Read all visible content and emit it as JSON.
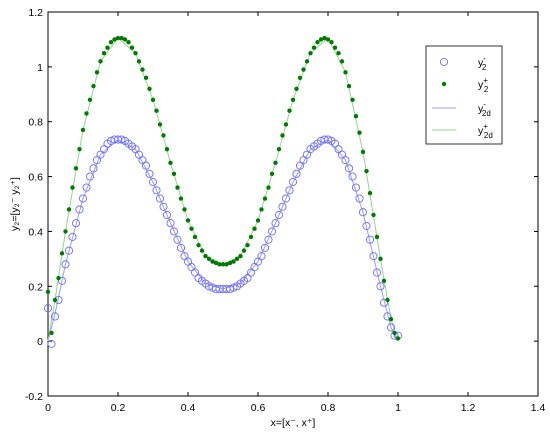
{
  "chart_data": {
    "type": "scatter",
    "xlabel": "x=[x⁻, x⁺]",
    "ylabel": "y₂=[y₂⁻ y₂⁺]",
    "xlim": [
      0,
      1.4
    ],
    "ylim": [
      -0.2,
      1.2
    ],
    "xticks": [
      "0",
      "0.2",
      "0.4",
      "0.6",
      "0.8",
      "1",
      "1.2",
      "1.4"
    ],
    "yticks": [
      "-0.2",
      "0",
      "0.2",
      "0.4",
      "0.6",
      "0.8",
      "1",
      "1.2"
    ],
    "legend_position": "top-right",
    "grid": false,
    "series": [
      {
        "name": "y₂⁻",
        "style": "open-circle",
        "color": "#6b6bff",
        "x": [
          0.0,
          0.01,
          0.02,
          0.03,
          0.04,
          0.05,
          0.06,
          0.07,
          0.08,
          0.09,
          0.1,
          0.11,
          0.12,
          0.13,
          0.14,
          0.15,
          0.16,
          0.17,
          0.18,
          0.19,
          0.2,
          0.21,
          0.22,
          0.23,
          0.24,
          0.25,
          0.26,
          0.27,
          0.28,
          0.29,
          0.3,
          0.31,
          0.32,
          0.33,
          0.34,
          0.35,
          0.36,
          0.37,
          0.38,
          0.39,
          0.4,
          0.41,
          0.42,
          0.43,
          0.44,
          0.45,
          0.46,
          0.47,
          0.48,
          0.49,
          0.5,
          0.51,
          0.52,
          0.53,
          0.54,
          0.55,
          0.56,
          0.57,
          0.58,
          0.59,
          0.6,
          0.61,
          0.62,
          0.63,
          0.64,
          0.65,
          0.66,
          0.67,
          0.68,
          0.69,
          0.7,
          0.71,
          0.72,
          0.73,
          0.74,
          0.75,
          0.76,
          0.77,
          0.78,
          0.79,
          0.8,
          0.81,
          0.82,
          0.83,
          0.84,
          0.85,
          0.86,
          0.87,
          0.88,
          0.89,
          0.9,
          0.91,
          0.92,
          0.93,
          0.94,
          0.95,
          0.96,
          0.97,
          0.98,
          0.99,
          1.0
        ],
        "y": [
          0.12,
          -0.01,
          0.09,
          0.15,
          0.22,
          0.28,
          0.33,
          0.38,
          0.43,
          0.48,
          0.52,
          0.56,
          0.6,
          0.63,
          0.66,
          0.68,
          0.7,
          0.72,
          0.73,
          0.735,
          0.735,
          0.735,
          0.73,
          0.72,
          0.71,
          0.7,
          0.68,
          0.66,
          0.64,
          0.61,
          0.58,
          0.55,
          0.52,
          0.49,
          0.46,
          0.43,
          0.4,
          0.37,
          0.34,
          0.31,
          0.29,
          0.27,
          0.25,
          0.23,
          0.22,
          0.21,
          0.2,
          0.195,
          0.19,
          0.19,
          0.19,
          0.19,
          0.19,
          0.195,
          0.2,
          0.21,
          0.22,
          0.23,
          0.25,
          0.27,
          0.29,
          0.31,
          0.34,
          0.37,
          0.4,
          0.43,
          0.46,
          0.49,
          0.52,
          0.55,
          0.58,
          0.61,
          0.64,
          0.66,
          0.68,
          0.7,
          0.71,
          0.72,
          0.73,
          0.735,
          0.735,
          0.73,
          0.72,
          0.7,
          0.68,
          0.66,
          0.63,
          0.6,
          0.56,
          0.52,
          0.47,
          0.42,
          0.37,
          0.31,
          0.25,
          0.2,
          0.14,
          0.09,
          0.05,
          0.02,
          0.02
        ]
      },
      {
        "name": "y₂⁺",
        "style": "filled-dot",
        "color": "#007a00",
        "x": [
          0.0,
          0.01,
          0.02,
          0.03,
          0.04,
          0.05,
          0.06,
          0.07,
          0.08,
          0.09,
          0.1,
          0.11,
          0.12,
          0.13,
          0.14,
          0.15,
          0.16,
          0.17,
          0.18,
          0.19,
          0.2,
          0.21,
          0.22,
          0.23,
          0.24,
          0.25,
          0.26,
          0.27,
          0.28,
          0.29,
          0.3,
          0.31,
          0.32,
          0.33,
          0.34,
          0.35,
          0.36,
          0.37,
          0.38,
          0.39,
          0.4,
          0.41,
          0.42,
          0.43,
          0.44,
          0.45,
          0.46,
          0.47,
          0.48,
          0.49,
          0.5,
          0.51,
          0.52,
          0.53,
          0.54,
          0.55,
          0.56,
          0.57,
          0.58,
          0.59,
          0.6,
          0.61,
          0.62,
          0.63,
          0.64,
          0.65,
          0.66,
          0.67,
          0.68,
          0.69,
          0.7,
          0.71,
          0.72,
          0.73,
          0.74,
          0.75,
          0.76,
          0.77,
          0.78,
          0.79,
          0.8,
          0.81,
          0.82,
          0.83,
          0.84,
          0.85,
          0.86,
          0.87,
          0.88,
          0.89,
          0.9,
          0.91,
          0.92,
          0.93,
          0.94,
          0.95,
          0.96,
          0.97,
          0.98,
          0.99,
          1.0
        ],
        "y": [
          0.18,
          0.03,
          0.15,
          0.23,
          0.32,
          0.4,
          0.48,
          0.56,
          0.63,
          0.7,
          0.77,
          0.83,
          0.88,
          0.93,
          0.98,
          1.02,
          1.05,
          1.07,
          1.09,
          1.1,
          1.105,
          1.105,
          1.1,
          1.09,
          1.07,
          1.05,
          1.02,
          0.99,
          0.96,
          0.92,
          0.88,
          0.84,
          0.79,
          0.75,
          0.7,
          0.65,
          0.61,
          0.56,
          0.52,
          0.48,
          0.44,
          0.41,
          0.38,
          0.35,
          0.33,
          0.31,
          0.3,
          0.29,
          0.285,
          0.28,
          0.28,
          0.28,
          0.285,
          0.29,
          0.3,
          0.31,
          0.33,
          0.35,
          0.38,
          0.41,
          0.44,
          0.48,
          0.52,
          0.56,
          0.61,
          0.65,
          0.7,
          0.75,
          0.79,
          0.84,
          0.88,
          0.92,
          0.96,
          0.99,
          1.02,
          1.05,
          1.07,
          1.09,
          1.1,
          1.105,
          1.1,
          1.09,
          1.07,
          1.05,
          1.02,
          0.98,
          0.93,
          0.88,
          0.82,
          0.76,
          0.69,
          0.62,
          0.54,
          0.46,
          0.38,
          0.3,
          0.22,
          0.15,
          0.08,
          0.03,
          0.01
        ]
      },
      {
        "name": "y₂d⁻",
        "style": "line",
        "color": "#9a9aff",
        "x": [
          0.0,
          0.02,
          0.05,
          0.1,
          0.15,
          0.2,
          0.25,
          0.3,
          0.35,
          0.4,
          0.45,
          0.5,
          0.55,
          0.6,
          0.65,
          0.7,
          0.75,
          0.8,
          0.85,
          0.9,
          0.95,
          0.98,
          1.0
        ],
        "y": [
          0.0,
          0.1,
          0.28,
          0.52,
          0.68,
          0.735,
          0.7,
          0.58,
          0.43,
          0.29,
          0.21,
          0.19,
          0.21,
          0.29,
          0.43,
          0.58,
          0.7,
          0.735,
          0.66,
          0.47,
          0.2,
          0.05,
          0.0
        ]
      },
      {
        "name": "y₂d⁺",
        "style": "line",
        "color": "#8fd88f",
        "x": [
          0.0,
          0.02,
          0.05,
          0.1,
          0.15,
          0.2,
          0.25,
          0.3,
          0.35,
          0.4,
          0.45,
          0.5,
          0.55,
          0.6,
          0.65,
          0.7,
          0.75,
          0.8,
          0.85,
          0.9,
          0.95,
          0.98,
          1.0
        ],
        "y": [
          0.0,
          0.15,
          0.4,
          0.77,
          1.02,
          1.105,
          1.05,
          0.88,
          0.65,
          0.44,
          0.31,
          0.28,
          0.31,
          0.44,
          0.65,
          0.88,
          1.05,
          1.105,
          0.98,
          0.69,
          0.3,
          0.08,
          0.0
        ]
      }
    ],
    "legend": [
      {
        "base": "y",
        "sub": "2",
        "sup": "-"
      },
      {
        "base": "y",
        "sub": "2",
        "sup": "+"
      },
      {
        "base": "y",
        "sub": "2d",
        "sup": "-"
      },
      {
        "base": "y",
        "sub": "2d",
        "sup": "+"
      }
    ]
  }
}
